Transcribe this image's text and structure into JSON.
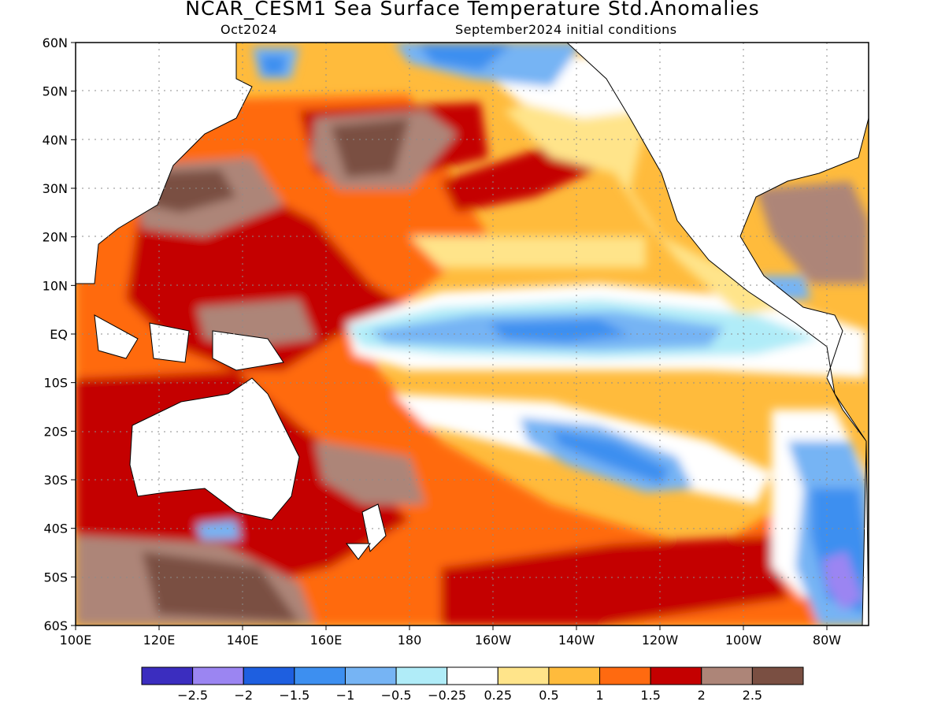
{
  "header": {
    "title": "NCAR_CESM1 Sea Surface Temperature Std.Anomalies",
    "forecast_month": "Oct2024",
    "initial_conditions": "September2024 initial conditions"
  },
  "map": {
    "lon_labels": [
      "100E",
      "120E",
      "140E",
      "160E",
      "180",
      "160W",
      "140W",
      "120W",
      "100W",
      "80W"
    ],
    "lat_labels": [
      "60N",
      "50N",
      "40N",
      "30N",
      "20N",
      "10N",
      "EQ",
      "10S",
      "20S",
      "30S",
      "40S",
      "50S",
      "60S"
    ],
    "lon_range": [
      100,
      290
    ],
    "lat_range": [
      -60,
      60
    ]
  },
  "legend": {
    "colors": [
      "#3b2dbf",
      "#9b85f2",
      "#1e5fe0",
      "#3d8ff0",
      "#76b4f4",
      "#b0ecf8",
      "#ffffff",
      "#ffe48a",
      "#ffbb3c",
      "#ff6a10",
      "#c40000",
      "#ad8578",
      "#7a4f42"
    ],
    "labels": [
      "-2.5",
      "-2",
      "-1.5",
      "-1",
      "-0.5",
      "-0.25",
      "0.25",
      "0.5",
      "1",
      "1.5",
      "2",
      "2.5"
    ]
  }
}
